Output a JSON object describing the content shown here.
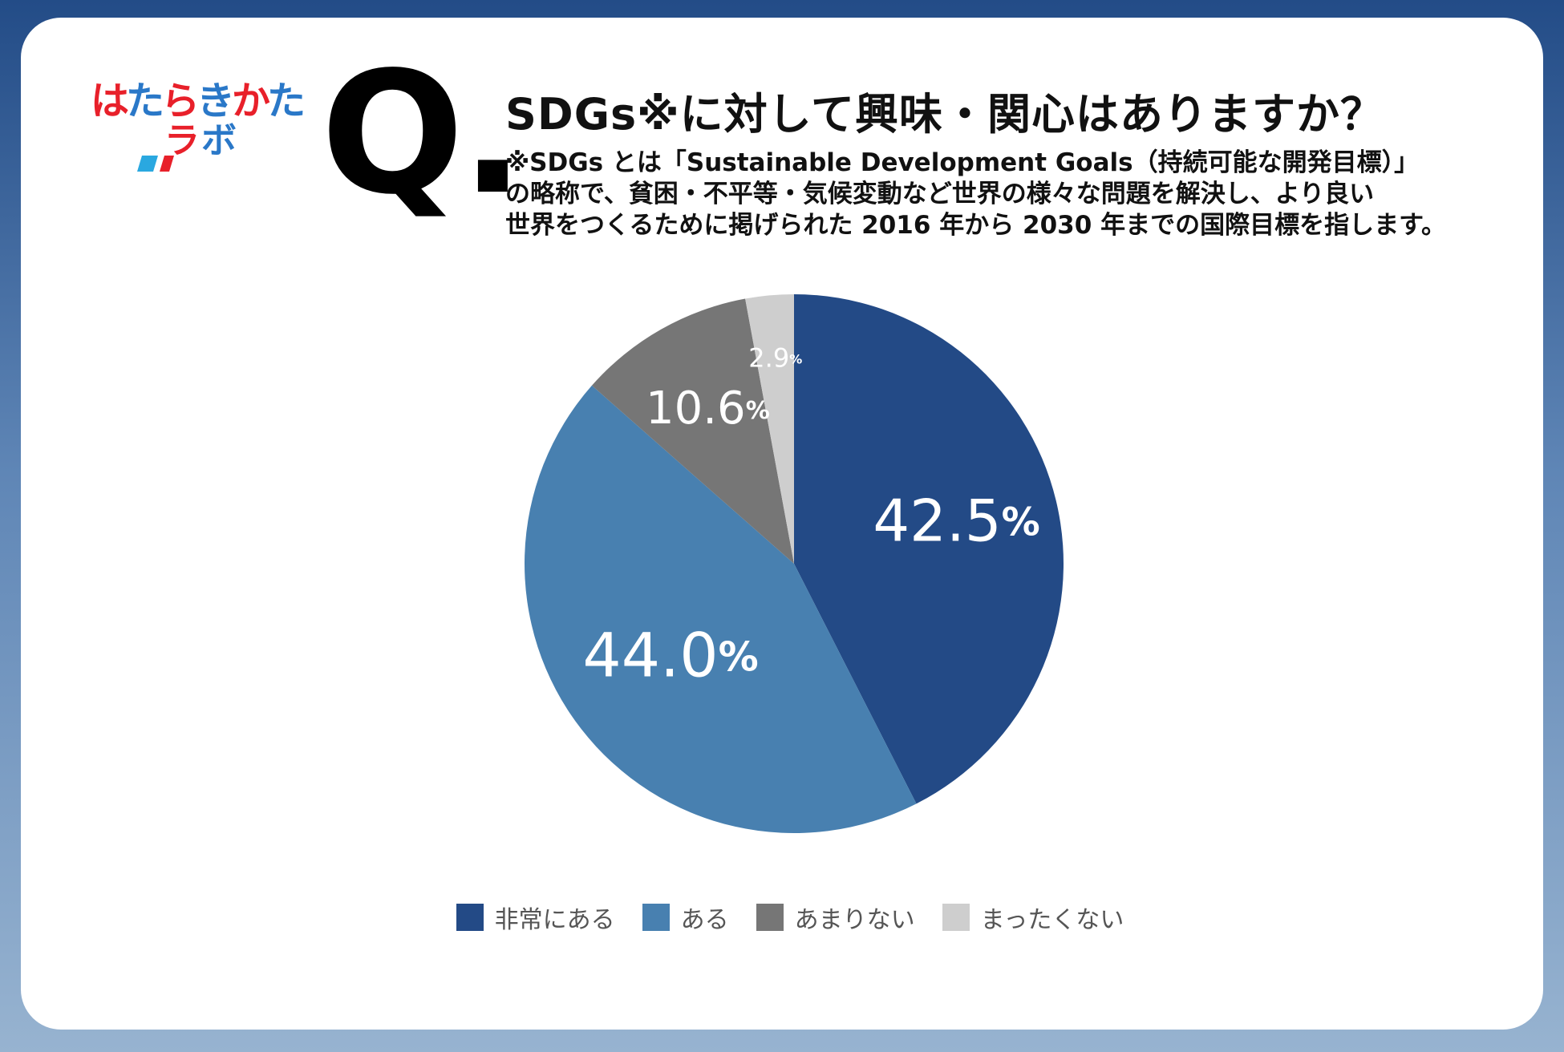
{
  "logo": {
    "line1": [
      "は",
      "た",
      "ら",
      "き",
      "か",
      "た"
    ],
    "line2": [
      "ラ",
      "ボ"
    ],
    "line1_colors": [
      "#e8202a",
      "#2a78c8",
      "#e8202a",
      "#2a78c8",
      "#e8202a",
      "#2a78c8"
    ],
    "line2_colors": [
      "#e8202a",
      "#2a78c8"
    ],
    "accent_colors": [
      "#e8202a",
      "#2aa8e0"
    ]
  },
  "question": {
    "mark": "Q.",
    "title": "SDGs※に対して興味・関心はありますか？",
    "note_lines": [
      "※SDGs とは「Sustainable Development Goals（持続可能な開発目標）」",
      "の略称で、貧困・不平等・気候変動など世界の様々な問題を解決し、より良い",
      "世界をつくるために掲げられた 2016 年から 2030 年までの国際目標を指します。"
    ]
  },
  "chart_data": {
    "type": "pie",
    "categories": [
      "非常にある",
      "ある",
      "あまりない",
      "まったくない"
    ],
    "values": [
      42.5,
      44.0,
      10.6,
      2.9
    ],
    "value_labels": [
      "42.5",
      "44.0",
      "10.6",
      "2.9"
    ],
    "unit": "%",
    "colors": [
      "#234a86",
      "#4880b0",
      "#767676",
      "#cecece"
    ],
    "start_angle_deg": 0,
    "direction": "clockwise",
    "legend_position": "bottom"
  }
}
